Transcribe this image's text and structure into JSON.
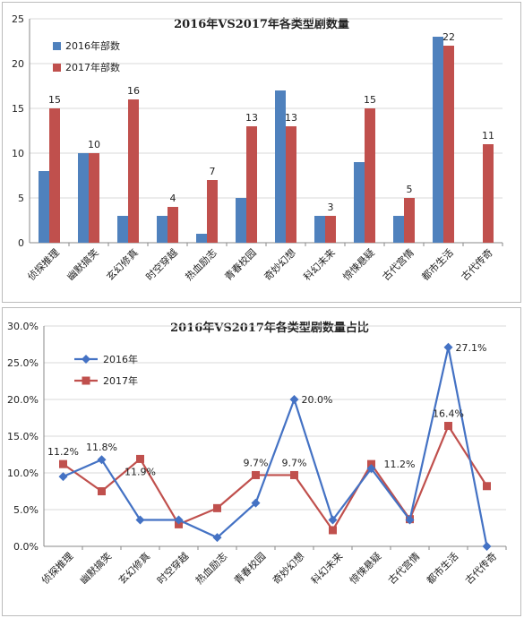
{
  "chart_data": [
    {
      "type": "bar",
      "title": "2016年VS2017年各类型剧数量",
      "categories": [
        "侦探推理",
        "幽默搞笑",
        "玄幻修真",
        "时空穿越",
        "热血励志",
        "青春校园",
        "奇妙幻想",
        "科幻未来",
        "惊悚悬疑",
        "古代宫情",
        "都市生活",
        "古代传奇"
      ],
      "series": [
        {
          "name": "2016年部数",
          "values": [
            8,
            10,
            3,
            3,
            1,
            5,
            17,
            3,
            9,
            3,
            23,
            0
          ]
        },
        {
          "name": "2017年部数",
          "values": [
            15,
            10,
            16,
            4,
            7,
            13,
            13,
            3,
            15,
            5,
            22,
            11
          ]
        }
      ],
      "data_labels_series": "2017年部数",
      "ylim": [
        0,
        25
      ],
      "yticks": [
        0,
        5,
        10,
        15,
        20,
        25
      ],
      "legend": "top-left",
      "grid": true,
      "colors": [
        "#4f81bd",
        "#c0504d"
      ]
    },
    {
      "type": "line",
      "title": "2016年VS2017年各类型剧数量占比",
      "categories": [
        "侦探推理",
        "幽默搞笑",
        "玄幻修真",
        "时空穿越",
        "热血励志",
        "青春校园",
        "奇妙幻想",
        "科幻未来",
        "惊悚悬疑",
        "古代宫情",
        "都市生活",
        "古代传奇"
      ],
      "series": [
        {
          "name": "2016年",
          "values": [
            9.5,
            11.8,
            3.6,
            3.6,
            1.2,
            5.9,
            20.0,
            3.6,
            10.6,
            3.6,
            27.1,
            0.0
          ]
        },
        {
          "name": "2017年",
          "values": [
            11.2,
            7.5,
            11.9,
            3.0,
            5.2,
            9.7,
            9.7,
            2.2,
            11.2,
            3.7,
            16.4,
            8.2
          ]
        }
      ],
      "annotations": [
        {
          "index": 0,
          "series": "2017年",
          "text": "11.2%"
        },
        {
          "index": 1,
          "series": "2016年",
          "text": "11.8%"
        },
        {
          "index": 2,
          "series": "2017年",
          "text": "11.9%"
        },
        {
          "index": 5,
          "series": "2017年",
          "text": "9.7%"
        },
        {
          "index": 6,
          "series": "2017年",
          "text": "9.7%"
        },
        {
          "index": 6,
          "series": "2016年",
          "text": "20.0%"
        },
        {
          "index": 8,
          "series": "2017年",
          "text": "11.2%"
        },
        {
          "index": 10,
          "series": "2016年",
          "text": "27.1%"
        },
        {
          "index": 10,
          "series": "2017年",
          "text": "16.4%"
        }
      ],
      "ylim": [
        0,
        30
      ],
      "yticks": [
        "0.0%",
        "5.0%",
        "10.0%",
        "15.0%",
        "20.0%",
        "25.0%",
        "30.0%"
      ],
      "legend": "top-left",
      "grid": true,
      "colors": [
        "#4472c4",
        "#c0504d"
      ]
    }
  ]
}
